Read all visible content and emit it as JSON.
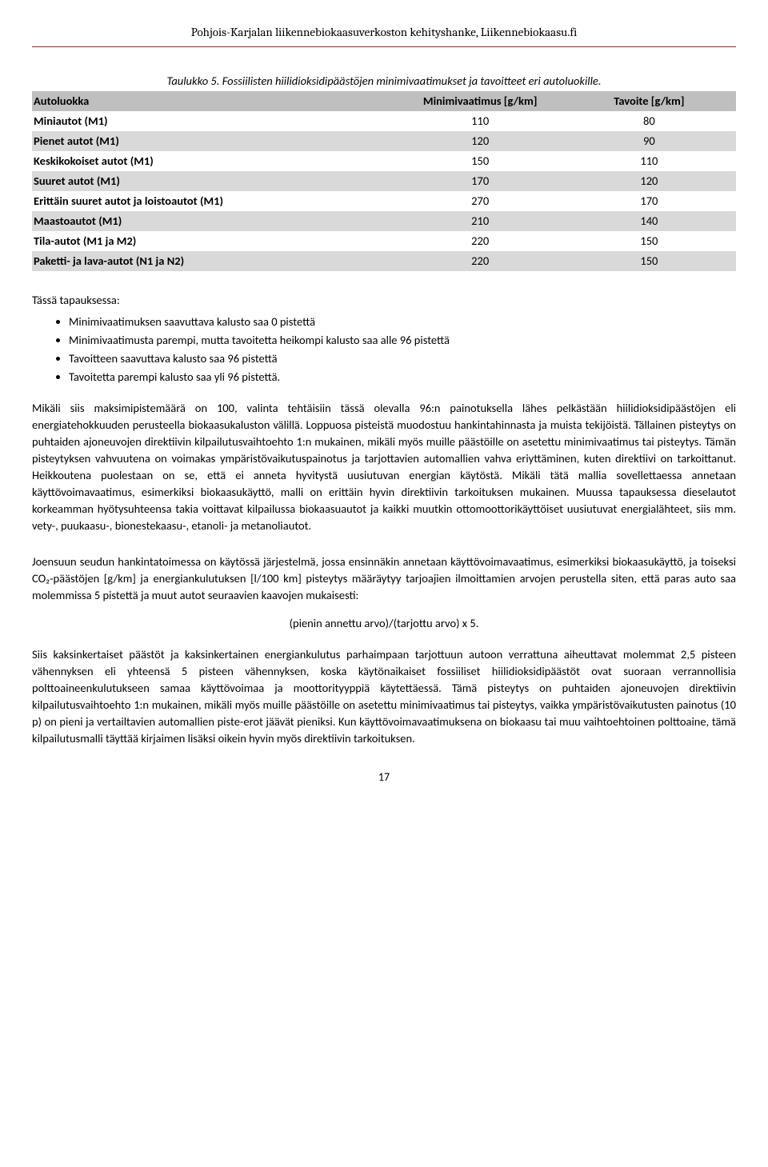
{
  "header": "Pohjois-Karjalan liikennebiokaasuverkoston kehityshanke, Liikennebiokaasu.fi",
  "caption": "Taulukko 5. Fossiilisten hiilidioksidipäästöjen minimivaatimukset ja tavoitteet eri autoluokille.",
  "table": {
    "columns": [
      "Autoluokka",
      "Minimivaatimus [g/km]",
      "Tavoite [g/km]"
    ],
    "rows": [
      {
        "label": "Miniautot (M1)",
        "c1": "110",
        "c2": "80",
        "shade": false
      },
      {
        "label": "Pienet autot (M1)",
        "c1": "120",
        "c2": "90",
        "shade": true
      },
      {
        "label": "Keskikokoiset autot (M1)",
        "c1": "150",
        "c2": "110",
        "shade": false
      },
      {
        "label": "Suuret autot (M1)",
        "c1": "170",
        "c2": "120",
        "shade": true
      },
      {
        "label": "Erittäin suuret autot ja loistoautot (M1)",
        "c1": "270",
        "c2": "170",
        "shade": false
      },
      {
        "label": "Maastoautot (M1)",
        "c1": "210",
        "c2": "140",
        "shade": true
      },
      {
        "label": "Tila-autot (M1 ja M2)",
        "c1": "220",
        "c2": "150",
        "shade": false
      },
      {
        "label": "Paketti- ja lava-autot (N1 ja N2)",
        "c1": "220",
        "c2": "150",
        "shade": true
      }
    ]
  },
  "intro": "Tässä tapauksessa:",
  "bullets": [
    "Minimivaatimuksen saavuttava kalusto saa 0 pistettä",
    "Minimivaatimusta parempi, mutta tavoitetta heikompi kalusto saa alle 96 pistettä",
    "Tavoitteen saavuttava kalusto saa 96 pistettä",
    "Tavoitetta parempi kalusto saa yli 96 pistettä."
  ],
  "para1": "Mikäli siis maksimipistemäärä on 100, valinta tehtäisiin tässä olevalla 96:n painotuksella lähes pelkästään hiilidioksidipäästöjen eli energiatehokkuuden perusteella biokaasukaluston välillä. Loppuosa pisteistä muodostuu hankintahinnasta ja muista tekijöistä. Tällainen pisteytys on puhtaiden ajoneuvojen direktiivin kilpailutusvaihtoehto 1:n mukainen, mikäli myös muille päästöille on asetettu minimivaatimus tai pisteytys. Tämän pisteytyksen vahvuutena on voimakas ympäristövaikutuspainotus ja tarjottavien automallien vahva eriyttäminen, kuten direktiivi on tarkoittanut. Heikkoutena puolestaan on se, että ei anneta hyvitystä uusiutuvan energian käytöstä. Mikäli tätä mallia sovellettaessa annetaan käyttövoimavaatimus, esimerkiksi biokaasukäyttö, malli on erittäin hyvin direktiivin tarkoituksen mukainen. Muussa tapauksessa dieselautot korkeamman hyötysuhteensa takia voittavat kilpailussa biokaasuautot ja kaikki muutkin ottomoottorikäyttöiset uusiutuvat energialähteet, siis mm. vety-, puukaasu-, bionestekaasu-, etanoli- ja metanoliautot.",
  "para2": "Joensuun seudun hankintatoimessa on käytössä järjestelmä, jossa ensinnäkin annetaan käyttövoimavaatimus, esimerkiksi biokaasukäyttö, ja toiseksi CO₂-päästöjen [g/km] ja energiankulutuksen [l/100 km] pisteytys määräytyy tarjoajien ilmoittamien arvojen perustella siten, että paras auto saa molemmissa 5 pistettä ja muut autot seuraavien kaavojen mukaisesti:",
  "formula": "(pienin annettu arvo)/(tarjottu arvo) x 5.",
  "para3": "Siis kaksinkertaiset päästöt ja kaksinkertainen energiankulutus parhaimpaan tarjottuun autoon verrattuna aiheuttavat molemmat 2,5 pisteen vähennyksen eli yhteensä 5 pisteen vähennyksen, koska käytönaikaiset fossiiliset hiilidioksidipäästöt ovat suoraan verrannollisia polttoaineenkulutukseen samaa käyttövoimaa ja moottorityyppiä käytettäessä. Tämä pisteytys on puhtaiden ajoneuvojen direktiivin kilpailutusvaihtoehto 1:n mukainen, mikäli myös muille päästöille on asetettu minimivaatimus tai pisteytys, vaikka ympäristövaikutusten painotus (10 p) on pieni ja vertailtavien automallien piste-erot jäävät pieniksi. Kun käyttövoimavaatimuksena on biokaasu tai muu vaihtoehtoinen polttoaine, tämä kilpailutusmalli täyttää kirjaimen lisäksi oikein hyvin myös direktiivin tarkoituksen.",
  "page_number": "17"
}
